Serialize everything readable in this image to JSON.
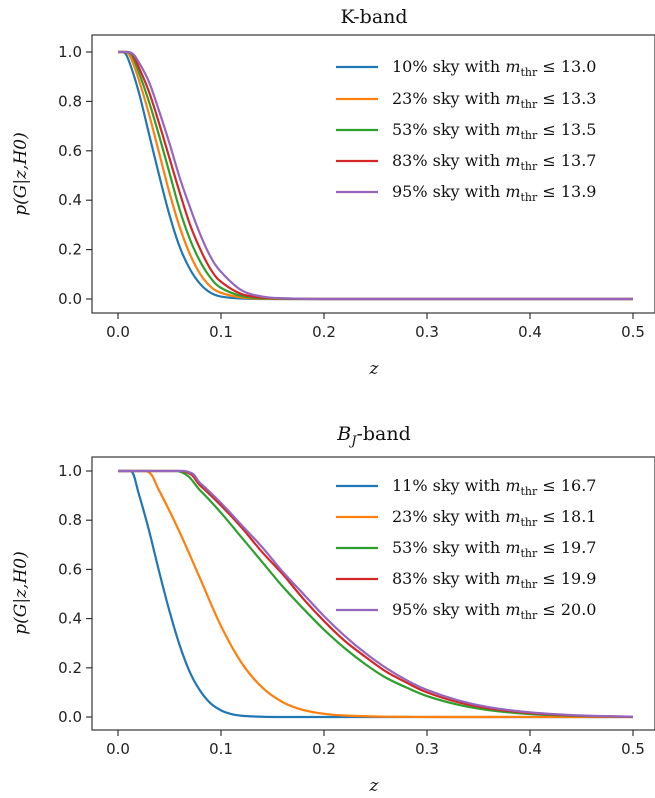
{
  "chart_data": [
    {
      "type": "line",
      "title": "K-band",
      "xlabel": "z",
      "ylabel": "p(G|z,H0)",
      "xlim": [
        0,
        0.5
      ],
      "ylim": [
        0,
        1.0
      ],
      "xticks": [
        "0.0",
        "0.1",
        "0.2",
        "0.3",
        "0.4",
        "0.5"
      ],
      "yticks": [
        "0.0",
        "0.2",
        "0.4",
        "0.6",
        "0.8",
        "1.0"
      ],
      "legend_position": "top-right",
      "grid": false,
      "series": [
        {
          "legend_prefix": "10% sky with ",
          "legend_value": "13.0",
          "color": "#1f77b4",
          "x": [
            0,
            0.005,
            0.01,
            0.02,
            0.03,
            0.04,
            0.05,
            0.06,
            0.07,
            0.08,
            0.09,
            0.1,
            0.12,
            0.15,
            0.2,
            0.3,
            0.5
          ],
          "y": [
            1.0,
            1.0,
            0.97,
            0.84,
            0.67,
            0.5,
            0.34,
            0.21,
            0.12,
            0.06,
            0.025,
            0.01,
            0.002,
            0.0,
            0.0,
            0.0,
            0.0
          ]
        },
        {
          "legend_prefix": "23% sky with ",
          "legend_value": "13.3",
          "color": "#ff7f0e",
          "x": [
            0,
            0.007,
            0.012,
            0.02,
            0.03,
            0.04,
            0.05,
            0.06,
            0.07,
            0.08,
            0.09,
            0.1,
            0.12,
            0.14,
            0.18,
            0.3,
            0.5
          ],
          "y": [
            1.0,
            1.0,
            0.98,
            0.89,
            0.75,
            0.59,
            0.43,
            0.29,
            0.18,
            0.1,
            0.05,
            0.025,
            0.006,
            0.001,
            0.0,
            0.0,
            0.0
          ]
        },
        {
          "legend_prefix": "53% sky with ",
          "legend_value": "13.5",
          "color": "#2ca02c",
          "x": [
            0,
            0.008,
            0.013,
            0.02,
            0.03,
            0.04,
            0.05,
            0.06,
            0.07,
            0.08,
            0.09,
            0.1,
            0.12,
            0.14,
            0.18,
            0.3,
            0.5
          ],
          "y": [
            1.0,
            1.0,
            0.99,
            0.92,
            0.8,
            0.66,
            0.51,
            0.36,
            0.24,
            0.15,
            0.085,
            0.045,
            0.012,
            0.003,
            0.0,
            0.0,
            0.0
          ]
        },
        {
          "legend_prefix": "83% sky with ",
          "legend_value": "13.7",
          "color": "#d62728",
          "x": [
            0,
            0.009,
            0.014,
            0.02,
            0.03,
            0.04,
            0.05,
            0.06,
            0.07,
            0.08,
            0.09,
            0.1,
            0.12,
            0.14,
            0.16,
            0.2,
            0.3,
            0.5
          ],
          "y": [
            1.0,
            1.0,
            0.99,
            0.94,
            0.84,
            0.71,
            0.57,
            0.43,
            0.3,
            0.2,
            0.12,
            0.07,
            0.02,
            0.006,
            0.002,
            0.0,
            0.0,
            0.0
          ]
        },
        {
          "legend_prefix": "95% sky with ",
          "legend_value": "13.9",
          "color": "#9467bd",
          "x": [
            0,
            0.01,
            0.015,
            0.02,
            0.03,
            0.04,
            0.05,
            0.06,
            0.07,
            0.08,
            0.09,
            0.1,
            0.12,
            0.14,
            0.16,
            0.2,
            0.3,
            0.5
          ],
          "y": [
            1.0,
            1.0,
            0.99,
            0.96,
            0.88,
            0.76,
            0.63,
            0.49,
            0.37,
            0.26,
            0.17,
            0.11,
            0.035,
            0.01,
            0.003,
            0.0,
            0.0,
            0.0
          ]
        }
      ]
    },
    {
      "type": "line",
      "title_main": "B",
      "title_sub": "J",
      "title_rest": "-band",
      "xlabel": "z",
      "ylabel": "p(G|z,H0)",
      "xlim": [
        0,
        0.5
      ],
      "ylim": [
        0,
        1.0
      ],
      "xticks": [
        "0.0",
        "0.1",
        "0.2",
        "0.3",
        "0.4",
        "0.5"
      ],
      "yticks": [
        "0.0",
        "0.2",
        "0.4",
        "0.6",
        "0.8",
        "1.0"
      ],
      "legend_position": "top-right",
      "grid": false,
      "series": [
        {
          "legend_prefix": "11% sky with ",
          "legend_value": "16.7",
          "color": "#1f77b4",
          "x": [
            0,
            0.013,
            0.02,
            0.03,
            0.04,
            0.05,
            0.06,
            0.07,
            0.08,
            0.09,
            0.1,
            0.11,
            0.12,
            0.14,
            0.16,
            0.2,
            0.3,
            0.5
          ],
          "y": [
            1.0,
            1.0,
            0.91,
            0.76,
            0.59,
            0.43,
            0.29,
            0.18,
            0.105,
            0.055,
            0.027,
            0.012,
            0.005,
            0.001,
            0.0,
            0.0,
            0.0,
            0.0
          ]
        },
        {
          "legend_prefix": "23% sky with ",
          "legend_value": "18.1",
          "color": "#ff7f0e",
          "x": [
            0,
            0.028,
            0.04,
            0.06,
            0.08,
            0.1,
            0.12,
            0.14,
            0.16,
            0.18,
            0.2,
            0.22,
            0.25,
            0.28,
            0.32,
            0.4,
            0.5
          ],
          "y": [
            1.0,
            1.0,
            0.92,
            0.75,
            0.56,
            0.37,
            0.22,
            0.12,
            0.06,
            0.028,
            0.013,
            0.006,
            0.002,
            0.0005,
            0.0,
            0.0,
            0.0
          ]
        },
        {
          "legend_prefix": "53% sky with ",
          "legend_value": "19.7",
          "color": "#2ca02c",
          "x": [
            0,
            0.058,
            0.08,
            0.1,
            0.12,
            0.14,
            0.16,
            0.18,
            0.2,
            0.22,
            0.24,
            0.26,
            0.28,
            0.3,
            0.33,
            0.36,
            0.4,
            0.45,
            0.5
          ],
          "y": [
            1.0,
            1.0,
            0.92,
            0.83,
            0.73,
            0.63,
            0.53,
            0.44,
            0.355,
            0.28,
            0.215,
            0.16,
            0.12,
            0.085,
            0.05,
            0.028,
            0.012,
            0.004,
            0.001
          ]
        },
        {
          "legend_prefix": "83% sky with ",
          "legend_value": "19.9",
          "color": "#d62728",
          "x": [
            0,
            0.062,
            0.08,
            0.1,
            0.12,
            0.14,
            0.16,
            0.18,
            0.2,
            0.22,
            0.24,
            0.26,
            0.28,
            0.3,
            0.33,
            0.36,
            0.4,
            0.45,
            0.5
          ],
          "y": [
            1.0,
            1.0,
            0.94,
            0.86,
            0.77,
            0.67,
            0.58,
            0.48,
            0.39,
            0.31,
            0.245,
            0.185,
            0.14,
            0.1,
            0.06,
            0.035,
            0.016,
            0.005,
            0.001
          ]
        },
        {
          "legend_prefix": "95% sky with ",
          "legend_value": "20.0",
          "color": "#9467bd",
          "x": [
            0,
            0.064,
            0.08,
            0.1,
            0.12,
            0.14,
            0.16,
            0.18,
            0.2,
            0.22,
            0.24,
            0.26,
            0.28,
            0.3,
            0.33,
            0.36,
            0.4,
            0.45,
            0.5
          ],
          "y": [
            1.0,
            1.0,
            0.95,
            0.87,
            0.78,
            0.69,
            0.59,
            0.5,
            0.41,
            0.33,
            0.26,
            0.2,
            0.15,
            0.11,
            0.068,
            0.04,
            0.019,
            0.006,
            0.0015
          ]
        }
      ]
    }
  ]
}
